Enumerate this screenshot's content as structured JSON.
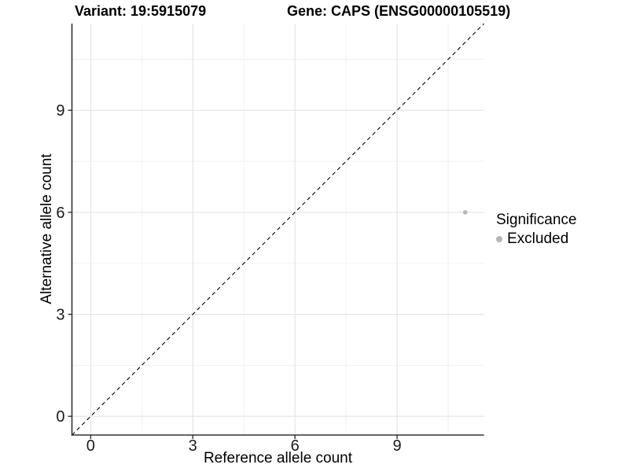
{
  "chart_data": {
    "type": "scatter",
    "title": "Variant: 19:5915079        Gene: CAPS (ENSG00000105519)",
    "title_variant": "Variant: 19:5915079",
    "title_gene": "Gene: CAPS (ENSG00000105519)",
    "xlabel": "Reference allele count",
    "ylabel": "Alternative allele count",
    "xlim": [
      -0.55,
      11.55
    ],
    "ylim": [
      -0.55,
      11.55
    ],
    "xticks": [
      0,
      3,
      6,
      9
    ],
    "yticks": [
      0,
      3,
      6,
      9
    ],
    "xticks_minor": [
      1.5,
      4.5,
      7.5,
      10.5
    ],
    "yticks_minor": [
      1.5,
      4.5,
      7.5,
      10.5
    ],
    "grid": true,
    "reference_line": {
      "type": "identity",
      "style": "dashed",
      "color": "#000000"
    },
    "series": [
      {
        "name": "Excluded",
        "color": "#b5b5b5",
        "points": [
          [
            11,
            6
          ]
        ]
      }
    ],
    "legend": {
      "title": "Significance",
      "position": "right",
      "items": [
        {
          "label": "Excluded",
          "color": "#b5b5b5",
          "shape": "circle"
        }
      ]
    },
    "colors": {
      "grid_major": "#e3e3e3",
      "grid_minor": "#f1f1f1",
      "axis_line": "#333333",
      "tick_text": "#1a1a1a",
      "background": "#ffffff"
    }
  }
}
